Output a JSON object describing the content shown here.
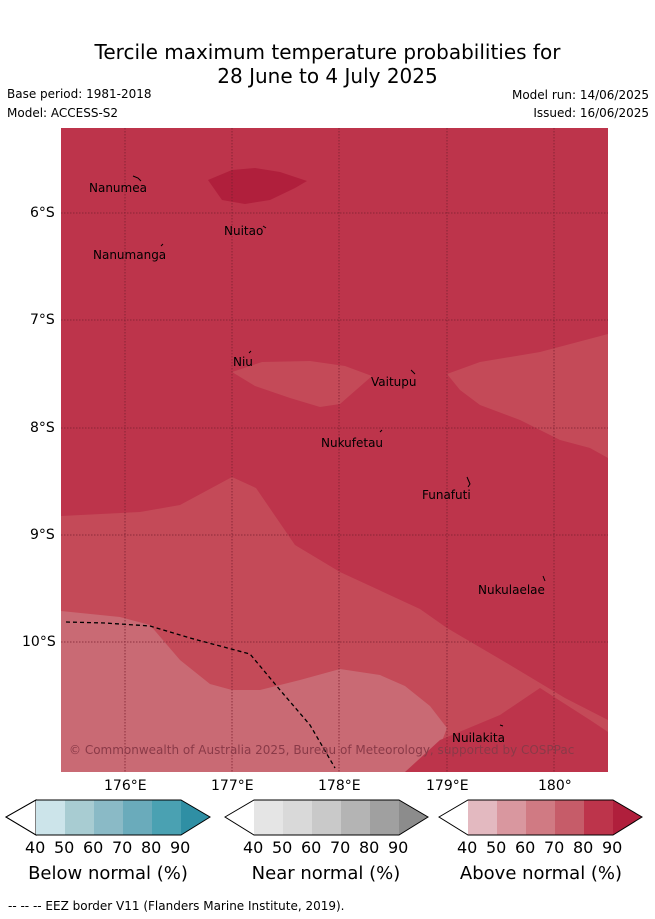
{
  "title": {
    "line1": "Tercile maximum temperature probabilities for",
    "line2": "28 June to 4 July 2025"
  },
  "meta": {
    "base_period": "Base period: 1981-2018",
    "model": "Model: ACCESS-S2",
    "model_run": "Model run: 14/06/2025",
    "issued": "Issued: 16/06/2025"
  },
  "map": {
    "lat_labels": [
      "6°S",
      "7°S",
      "8°S",
      "9°S",
      "10°S"
    ],
    "lon_labels": [
      "176°E",
      "177°E",
      "178°E",
      "179°E",
      "180°"
    ],
    "places": [
      "Nanumea",
      "Nuitao",
      "Nanumanga",
      "Niu",
      "Vaitupu",
      "Nukufetau",
      "Funafuti",
      "Nukulaelae",
      "Nuilakita"
    ],
    "copyright": "© Commonwealth of Australia 2025, Bureau of Meteorology, supported by COSPPac",
    "colors": {
      "above_80": "#bd344b",
      "above_90": "#b01f3c",
      "above_70": "#c44a58",
      "above_60": "#c96a74",
      "ocean_border": "#000000"
    }
  },
  "legends": {
    "ticks": [
      "40",
      "50",
      "60",
      "70",
      "80",
      "90"
    ],
    "below": {
      "label": "Below normal (%)",
      "colors": [
        "#cce4ea",
        "#a8ccd2",
        "#8abac6",
        "#6aabbb",
        "#4aa1b2",
        "#2f8fa4"
      ]
    },
    "near": {
      "label": "Near normal (%)",
      "colors": [
        "#e5e5e5",
        "#d9d9d9",
        "#c9c9c9",
        "#b4b4b4",
        "#a0a0a0",
        "#8c8c8c"
      ]
    },
    "above": {
      "label": "Above normal (%)",
      "colors": [
        "#e3b9c0",
        "#d9979f",
        "#d07a83",
        "#c65c69",
        "#bd344b",
        "#b01f3c"
      ]
    }
  },
  "footnote": "--  --  -- EEZ border V11 (Flanders Marine Institute, 2019)."
}
